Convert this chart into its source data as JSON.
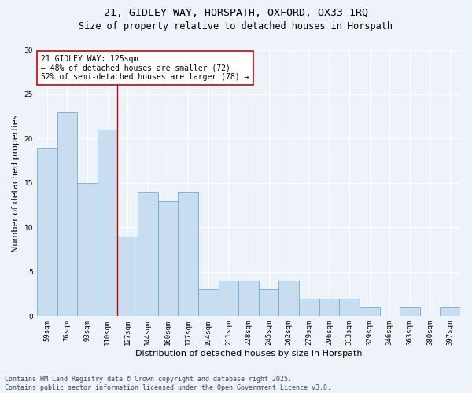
{
  "title1": "21, GIDLEY WAY, HORSPATH, OXFORD, OX33 1RQ",
  "title2": "Size of property relative to detached houses in Horspath",
  "xlabel": "Distribution of detached houses by size in Horspath",
  "ylabel": "Number of detached properties",
  "categories": [
    "59sqm",
    "76sqm",
    "93sqm",
    "110sqm",
    "127sqm",
    "144sqm",
    "160sqm",
    "177sqm",
    "194sqm",
    "211sqm",
    "228sqm",
    "245sqm",
    "262sqm",
    "279sqm",
    "296sqm",
    "313sqm",
    "329sqm",
    "346sqm",
    "363sqm",
    "380sqm",
    "397sqm"
  ],
  "values": [
    19,
    23,
    15,
    21,
    9,
    14,
    13,
    14,
    3,
    4,
    4,
    3,
    4,
    2,
    2,
    2,
    1,
    0,
    1,
    0,
    1
  ],
  "bar_color": "#c9ddf0",
  "bar_edge_color": "#6aaed6",
  "vline_x_idx": 3.5,
  "vline_color": "#cc0000",
  "annotation_text": "21 GIDLEY WAY: 125sqm\n← 48% of detached houses are smaller (72)\n52% of semi-detached houses are larger (78) →",
  "annotation_box_color": "white",
  "annotation_box_edge": "#cc0000",
  "ylim": [
    0,
    30
  ],
  "yticks": [
    0,
    5,
    10,
    15,
    20,
    25,
    30
  ],
  "grid_color": "#e8eef5",
  "background_color": "#eef2f9",
  "footer": "Contains HM Land Registry data © Crown copyright and database right 2025.\nContains public sector information licensed under the Open Government Licence v3.0.",
  "title_fontsize": 9.5,
  "subtitle_fontsize": 8.5,
  "tick_fontsize": 6.5,
  "ylabel_fontsize": 8,
  "xlabel_fontsize": 8,
  "footer_fontsize": 6,
  "annotation_fontsize": 7
}
